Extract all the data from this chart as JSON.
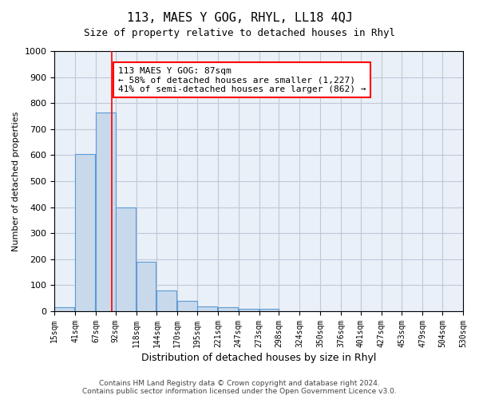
{
  "title": "113, MAES Y GOG, RHYL, LL18 4QJ",
  "subtitle": "Size of property relative to detached houses in Rhyl",
  "xlabel": "Distribution of detached houses by size in Rhyl",
  "ylabel": "Number of detached properties",
  "bar_color": "#c8d9ec",
  "bar_edge_color": "#5b9bd5",
  "grid_color": "#c0c8d8",
  "background_color": "#eaf0f8",
  "red_line_x": 87,
  "annotation_text": "113 MAES Y GOG: 87sqm\n← 58% of detached houses are smaller (1,227)\n41% of semi-detached houses are larger (862) →",
  "annotation_box_color": "white",
  "annotation_box_edge": "red",
  "footer_text": "Contains HM Land Registry data © Crown copyright and database right 2024.\nContains public sector information licensed under the Open Government Licence v3.0.",
  "bin_edges": [
    15,
    41,
    67,
    92,
    118,
    144,
    170,
    195,
    221,
    247,
    273,
    298,
    324,
    350,
    376,
    401,
    427,
    453,
    479,
    504,
    530
  ],
  "bar_heights": [
    15,
    605,
    765,
    400,
    190,
    80,
    40,
    20,
    15,
    10,
    10,
    0,
    0,
    0,
    0,
    0,
    0,
    0,
    0,
    0
  ],
  "ylim": [
    0,
    1000
  ],
  "yticks": [
    0,
    100,
    200,
    300,
    400,
    500,
    600,
    700,
    800,
    900,
    1000
  ]
}
